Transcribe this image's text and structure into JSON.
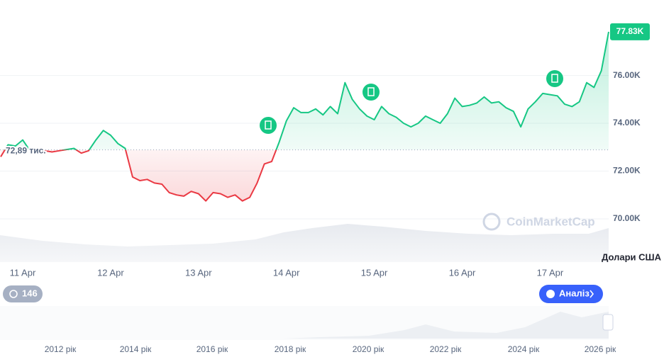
{
  "chart_data": {
    "type": "line",
    "categories": [
      null,
      null,
      null,
      "11 Apr",
      null,
      null,
      null,
      null,
      null,
      null,
      null,
      null,
      null,
      null,
      null,
      "12 Apr",
      null,
      null,
      null,
      null,
      null,
      null,
      null,
      null,
      null,
      null,
      null,
      "13 Apr",
      null,
      null,
      null,
      null,
      null,
      null,
      null,
      null,
      null,
      null,
      null,
      "14 Apr",
      null,
      null,
      null,
      null,
      null,
      null,
      null,
      null,
      null,
      null,
      null,
      "15 Apr",
      null,
      null,
      null,
      null,
      null,
      null,
      null,
      null,
      null,
      null,
      null,
      "16 Apr",
      null,
      null,
      null,
      null,
      null,
      null,
      null,
      null,
      null,
      null,
      null,
      "17 Apr",
      null,
      null,
      null,
      null,
      null,
      null,
      null,
      null
    ],
    "values": [
      72600,
      73100,
      73050,
      73300,
      72850,
      72900,
      72850,
      72800,
      72850,
      72900,
      72950,
      72750,
      72850,
      73300,
      73700,
      73500,
      73150,
      72950,
      71750,
      71600,
      71650,
      71500,
      71450,
      71100,
      71000,
      70950,
      71150,
      71050,
      70750,
      71100,
      71050,
      70900,
      71000,
      70750,
      70900,
      71500,
      72300,
      72400,
      73200,
      74100,
      74650,
      74450,
      74450,
      74600,
      74350,
      74700,
      74400,
      75700,
      75000,
      74600,
      74300,
      74150,
      74700,
      74400,
      74250,
      74000,
      73850,
      74000,
      74300,
      74150,
      74000,
      74400,
      75050,
      74700,
      74750,
      74850,
      75100,
      74850,
      74900,
      74650,
      74500,
      73850,
      74600,
      74900,
      75250,
      75200,
      75150,
      74800,
      74700,
      74900,
      75700,
      75500,
      76200,
      77830
    ],
    "up_color": "#16c784",
    "down_color": "#ea3943",
    "ylim": [
      68190,
      79160
    ],
    "yticks": [
      {
        "value": 70000,
        "label": "70.00K"
      },
      {
        "value": 72000,
        "label": "72.00K"
      },
      {
        "value": 74000,
        "label": "74.00K"
      },
      {
        "value": 76000,
        "label": "76.00K"
      }
    ],
    "grid": true,
    "baseline": {
      "value": 72890,
      "label": "72,89 тис."
    },
    "price_label": {
      "value": 77830,
      "label": "77.83K"
    },
    "y_axis_label": "Долари США",
    "watermark": "CoinMarketCap",
    "history_badge": "146",
    "analysis_button": "Аналіз",
    "navigator_labels": [
      "2012 рік",
      "2014 рік",
      "2016 рік",
      "2018 рік",
      "2020 рік",
      "2022 рік",
      "2024 рік",
      "2026 рік"
    ]
  }
}
